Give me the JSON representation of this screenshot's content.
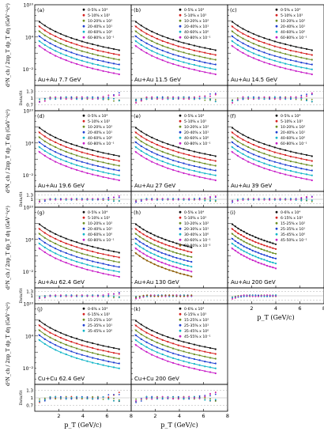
{
  "chart_data": {
    "type": "scatter",
    "y_axis_main": {
      "label": "d²N_ch / 2πp_T dp_T dη (GeV⁻²c²)",
      "scale": "log",
      "ylim": [
        1e-05,
        10000000000.0
      ],
      "tick_labels": [
        "10¹⁰",
        "10⁴",
        "10⁻²"
      ],
      "tick_values": [
        10000000000.0,
        10000.0,
        0.01
      ]
    },
    "y_axis_ratio": {
      "label": "Data/fit",
      "ylim": [
        0.45,
        1.55
      ],
      "tick_labels": [
        "1.3",
        "1",
        "0.7"
      ],
      "tick_values": [
        1.3,
        1.0,
        0.7
      ]
    },
    "x_axis": {
      "label": "p_T (GeV/c)",
      "xlim": [
        0,
        8
      ],
      "tick_labels": [
        "2",
        "4",
        "6",
        "8"
      ],
      "tick_values": [
        2,
        4,
        6,
        8
      ]
    },
    "series_colors": [
      "#111111",
      "#d62020",
      "#6b8e23",
      "#1f3fd1",
      "#12b5c8",
      "#c81ec8",
      "#8b5a00"
    ],
    "panels": [
      {
        "id": "(a)",
        "system": "Au+Au 7.7 GeV",
        "pt_max": 7,
        "legend": [
          "0-5% x 10⁴",
          "5-10% x 10³",
          "10-20% x 10²",
          "20-40% x 10¹",
          "40-60% x 10⁰",
          "60-80% x 10⁻¹"
        ]
      },
      {
        "id": "(b)",
        "system": "Au+Au 11.5 GeV",
        "pt_max": 7,
        "legend": [
          "0-5% x 10⁴",
          "5-10% x 10³",
          "10-20% x 10²",
          "20-40% x 10¹",
          "40-60% x 10⁰",
          "60-80% x 10⁻¹"
        ]
      },
      {
        "id": "(c)",
        "system": "Au+Au 14.5 GeV",
        "pt_max": 7,
        "legend": [
          "0-5% x 10⁴",
          "5-10% x 10³",
          "10-20% x 10²",
          "20-40% x 10¹",
          "40-60% x 10⁰",
          "60-80% x 10⁻¹"
        ]
      },
      {
        "id": "(d)",
        "system": "Au+Au 19.6 GeV",
        "pt_max": 7,
        "legend": [
          "0-5% x 10⁴",
          "5-10% x 10³",
          "10-20% x 10²",
          "20-40% x 10¹",
          "40-60% x 10⁰",
          "60-80% x 10⁻¹"
        ]
      },
      {
        "id": "(e)",
        "system": "Au+Au 27 GeV",
        "pt_max": 7,
        "legend": [
          "0-5% x 10⁴",
          "5-10% x 10³",
          "10-20% x 10²",
          "20-40% x 10¹",
          "40-60% x 10⁰",
          "60-80% x 10⁻¹"
        ]
      },
      {
        "id": "(f)",
        "system": "Au+Au 39 GeV",
        "pt_max": 7,
        "legend": [
          "0-5% x 10⁴",
          "5-10% x 10³",
          "10-20% x 10²",
          "20-40% x 10¹",
          "40-60% x 10⁰",
          "60-80% x 10⁻¹"
        ]
      },
      {
        "id": "(g)",
        "system": "Au+Au 62.4 GeV",
        "pt_max": 7,
        "legend": [
          "0-5% x 10⁴",
          "5-10% x 10³",
          "10-20% x 10²",
          "20-40% x 10¹",
          "40-60% x 10⁰",
          "60-80% x 10⁻¹"
        ]
      },
      {
        "id": "(h)",
        "system": "Au+Au 130 GeV",
        "pt_max": 5,
        "legend": [
          "0-5% x 10⁴",
          "5-10% x 10³",
          "10-20% x 10²",
          "20-30% x 10¹",
          "30-40% x 10⁰",
          "40-60% x 10⁻¹",
          "60-80% x 10⁻²"
        ]
      },
      {
        "id": "(i)",
        "system": "Au+Au 200 GeV",
        "pt_max": 4,
        "legend": [
          "0-6% x 10⁴",
          "6-15% x 10³",
          "15-25% x 10²",
          "25-35% x 10¹",
          "35-45% x 10⁰",
          "45-50% x 10⁻¹"
        ]
      },
      {
        "id": "(j)",
        "system": "Cu+Cu 62.4 GeV",
        "pt_max": 7,
        "legend": [
          "0-6% x 10⁴",
          "6-15% x 10³",
          "15-25% x 10²",
          "25-35% x 10¹",
          "35-45% x 10⁰"
        ]
      },
      {
        "id": "(k)",
        "system": "Cu+Cu 200 GeV",
        "pt_max": 7,
        "legend": [
          "0-6% x 10⁴",
          "6-15% x 10³",
          "15-25% x 10²",
          "25-35% x 10¹",
          "35-45% x 10⁰",
          "45-55% x 10⁻¹"
        ]
      }
    ]
  }
}
